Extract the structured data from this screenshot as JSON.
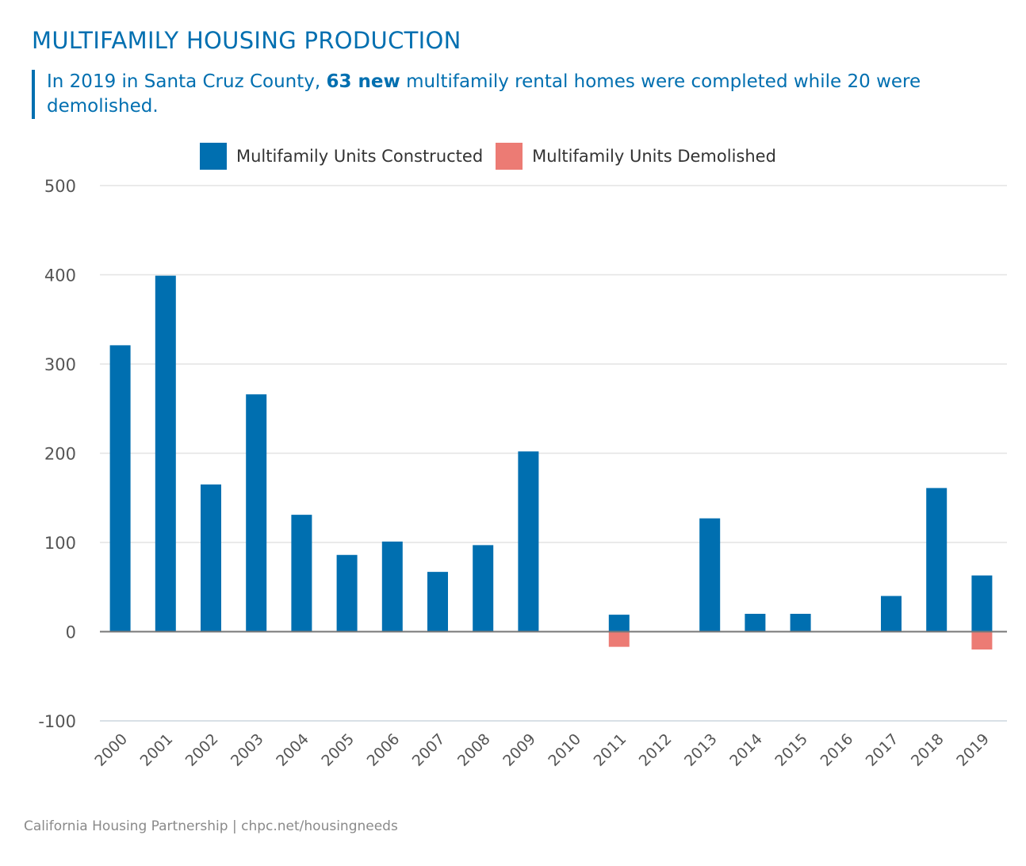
{
  "title": "MULTIFAMILY HOUSING PRODUCTION",
  "subtitle": {
    "part1": "In 2019 in Santa Cruz County, ",
    "bold": "63 new",
    "part2": " multifamily rental homes were completed while 20 were demolished."
  },
  "source": "California Housing Partnership | chpc.net/housingneeds",
  "colors": {
    "constructed": "#006fb0",
    "demolished": "#ec7b74",
    "accent": "#006fb0"
  },
  "chart_data": {
    "type": "bar",
    "title": "MULTIFAMILY HOUSING PRODUCTION",
    "xlabel": "",
    "ylabel": "",
    "ylim": [
      -100,
      500
    ],
    "yticks": [
      -100,
      0,
      100,
      200,
      300,
      400,
      500
    ],
    "grid": true,
    "legend_position": "top-center",
    "categories": [
      "2000",
      "2001",
      "2002",
      "2003",
      "2004",
      "2005",
      "2006",
      "2007",
      "2008",
      "2009",
      "2010",
      "2011",
      "2012",
      "2013",
      "2014",
      "2015",
      "2016",
      "2017",
      "2018",
      "2019"
    ],
    "series": [
      {
        "name": "Multifamily Units Constructed",
        "values": [
          321,
          399,
          165,
          266,
          131,
          86,
          101,
          67,
          97,
          202,
          0,
          19,
          0,
          127,
          20,
          20,
          0,
          40,
          161,
          63
        ]
      },
      {
        "name": "Multifamily Units Demolished",
        "values": [
          0,
          0,
          0,
          0,
          0,
          0,
          0,
          0,
          0,
          0,
          0,
          -17,
          0,
          0,
          0,
          0,
          0,
          0,
          0,
          -20
        ]
      }
    ]
  }
}
